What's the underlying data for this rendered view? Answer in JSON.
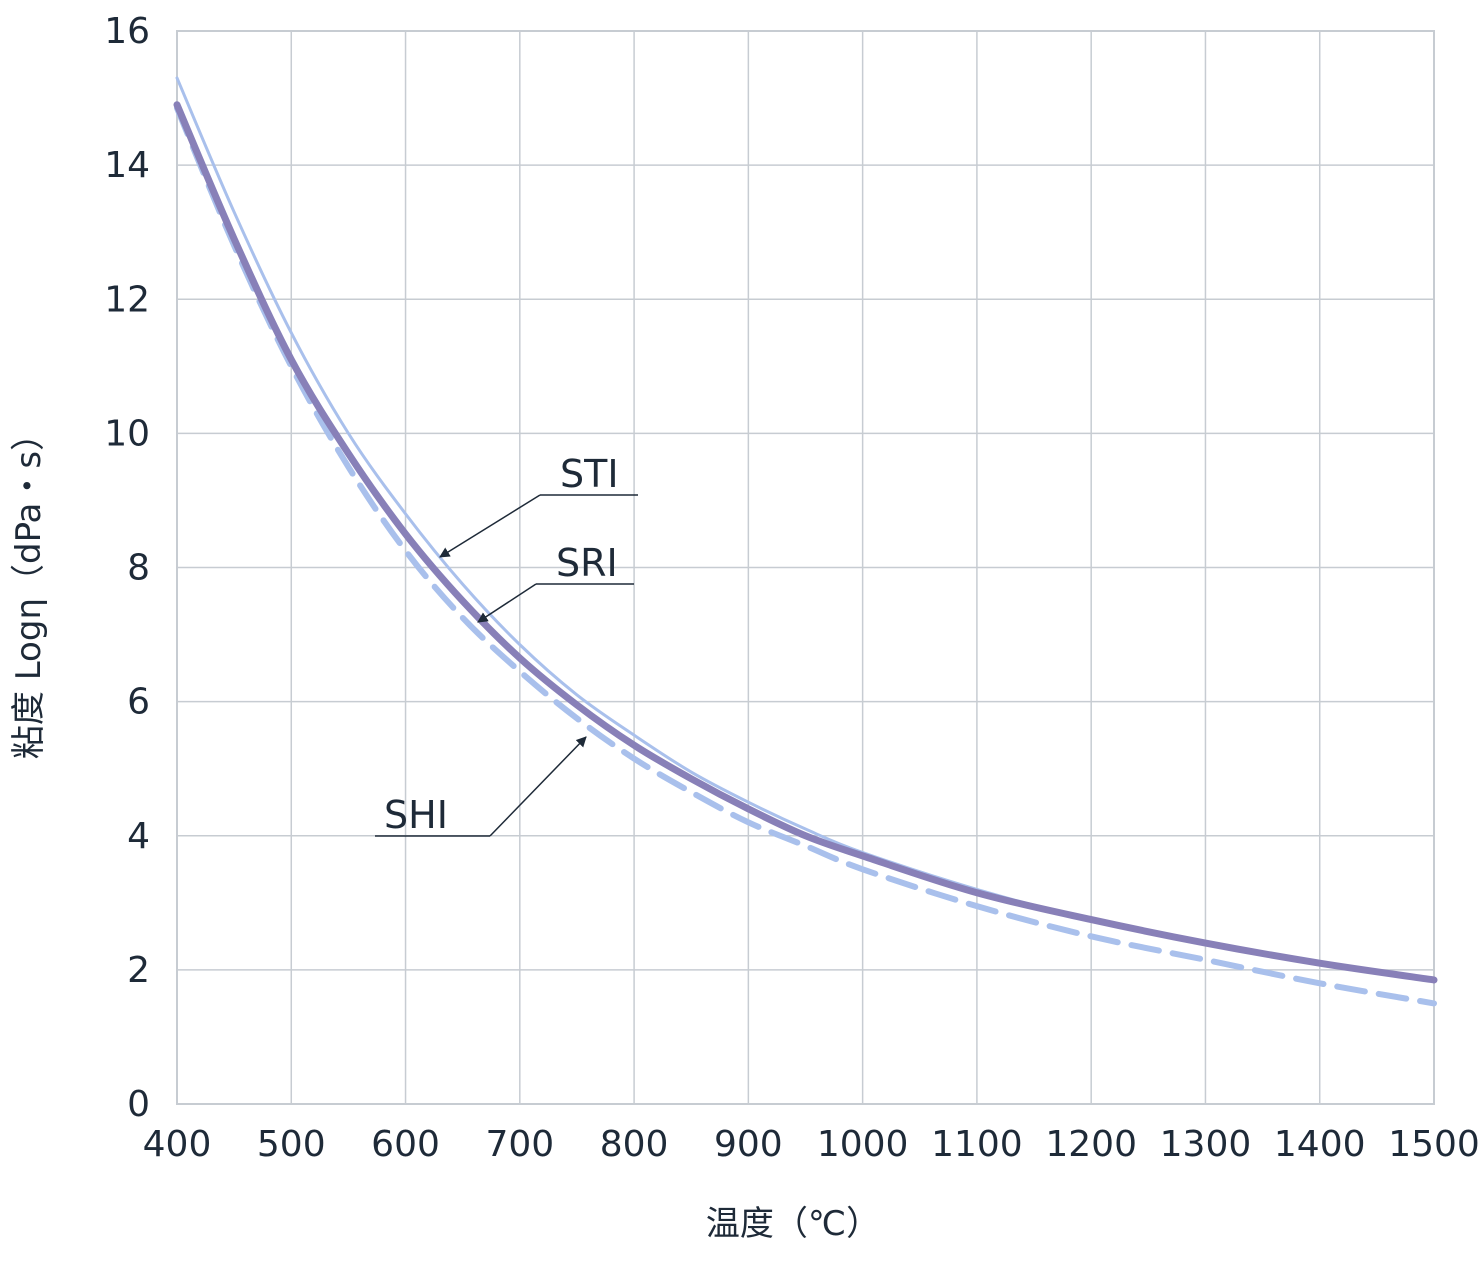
{
  "chart_data": {
    "type": "line",
    "xlabel": "温度（℃）",
    "ylabel": "粘度 Logη（dPa・s）",
    "xlim": [
      400,
      1500
    ],
    "ylim": [
      0,
      16
    ],
    "xticks": [
      "400",
      "500",
      "600",
      "700",
      "800",
      "900",
      "1000",
      "1100",
      "1200",
      "1300",
      "1400",
      "1500"
    ],
    "yticks": [
      "0",
      "2",
      "4",
      "6",
      "8",
      "10",
      "12",
      "14",
      "16"
    ],
    "grid": true,
    "series": [
      {
        "name": "STI",
        "color": "#a9c0ec",
        "style": "solid-thin",
        "x": [
          400,
          450,
          500,
          550,
          600,
          650,
          700,
          750,
          800,
          850,
          900,
          950,
          1000,
          1100,
          1200,
          1300,
          1400,
          1500
        ],
        "y": [
          15.3,
          13.3,
          11.5,
          10.0,
          8.8,
          7.75,
          6.85,
          6.1,
          5.5,
          4.95,
          4.5,
          4.1,
          3.75,
          3.2,
          2.75,
          2.4,
          2.1,
          1.85
        ]
      },
      {
        "name": "SRI",
        "color": "#8880b8",
        "style": "solid-thick",
        "x": [
          400,
          450,
          500,
          550,
          600,
          650,
          700,
          750,
          800,
          850,
          900,
          950,
          1000,
          1100,
          1200,
          1300,
          1400,
          1500
        ],
        "y": [
          14.9,
          12.9,
          11.1,
          9.7,
          8.5,
          7.5,
          6.65,
          5.95,
          5.35,
          4.85,
          4.4,
          4.0,
          3.7,
          3.15,
          2.75,
          2.4,
          2.1,
          1.85
        ]
      },
      {
        "name": "SHI",
        "color": "#a9c0ec",
        "style": "dashed",
        "x": [
          400,
          450,
          500,
          550,
          600,
          650,
          700,
          750,
          800,
          850,
          900,
          950,
          1000,
          1100,
          1200,
          1300,
          1400,
          1500
        ],
        "y": [
          14.85,
          12.8,
          11.0,
          9.5,
          8.25,
          7.25,
          6.45,
          5.75,
          5.15,
          4.65,
          4.2,
          3.85,
          3.5,
          2.95,
          2.5,
          2.15,
          1.8,
          1.5
        ]
      }
    ],
    "annotations": [
      "STI",
      "SRI",
      "SHI"
    ]
  }
}
